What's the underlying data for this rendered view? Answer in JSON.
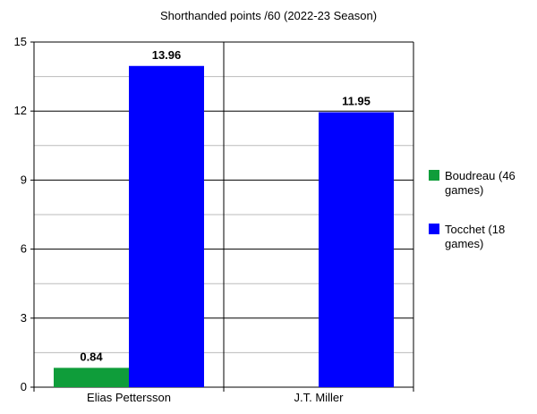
{
  "chart_data": {
    "type": "bar",
    "title": "Shorthanded points /60 (2022-23 Season)",
    "xlabel": "",
    "ylabel": "",
    "categories": [
      "Elias Pettersson",
      "J.T. Miller"
    ],
    "series": [
      {
        "name": "Boudreau (46 games)",
        "values": [
          0.84,
          null
        ],
        "color": "#0f9d3a"
      },
      {
        "name": "Tocchet (18 games)",
        "values": [
          13.96,
          11.95
        ],
        "color": "#0000ff"
      }
    ],
    "data_labels": [
      [
        "0.84",
        ""
      ],
      [
        "13.96",
        "11.95"
      ]
    ],
    "ylim": [
      0,
      15
    ],
    "yticks": [
      0,
      3,
      6,
      9,
      12,
      15
    ],
    "grid": true,
    "legend_position": "right"
  }
}
